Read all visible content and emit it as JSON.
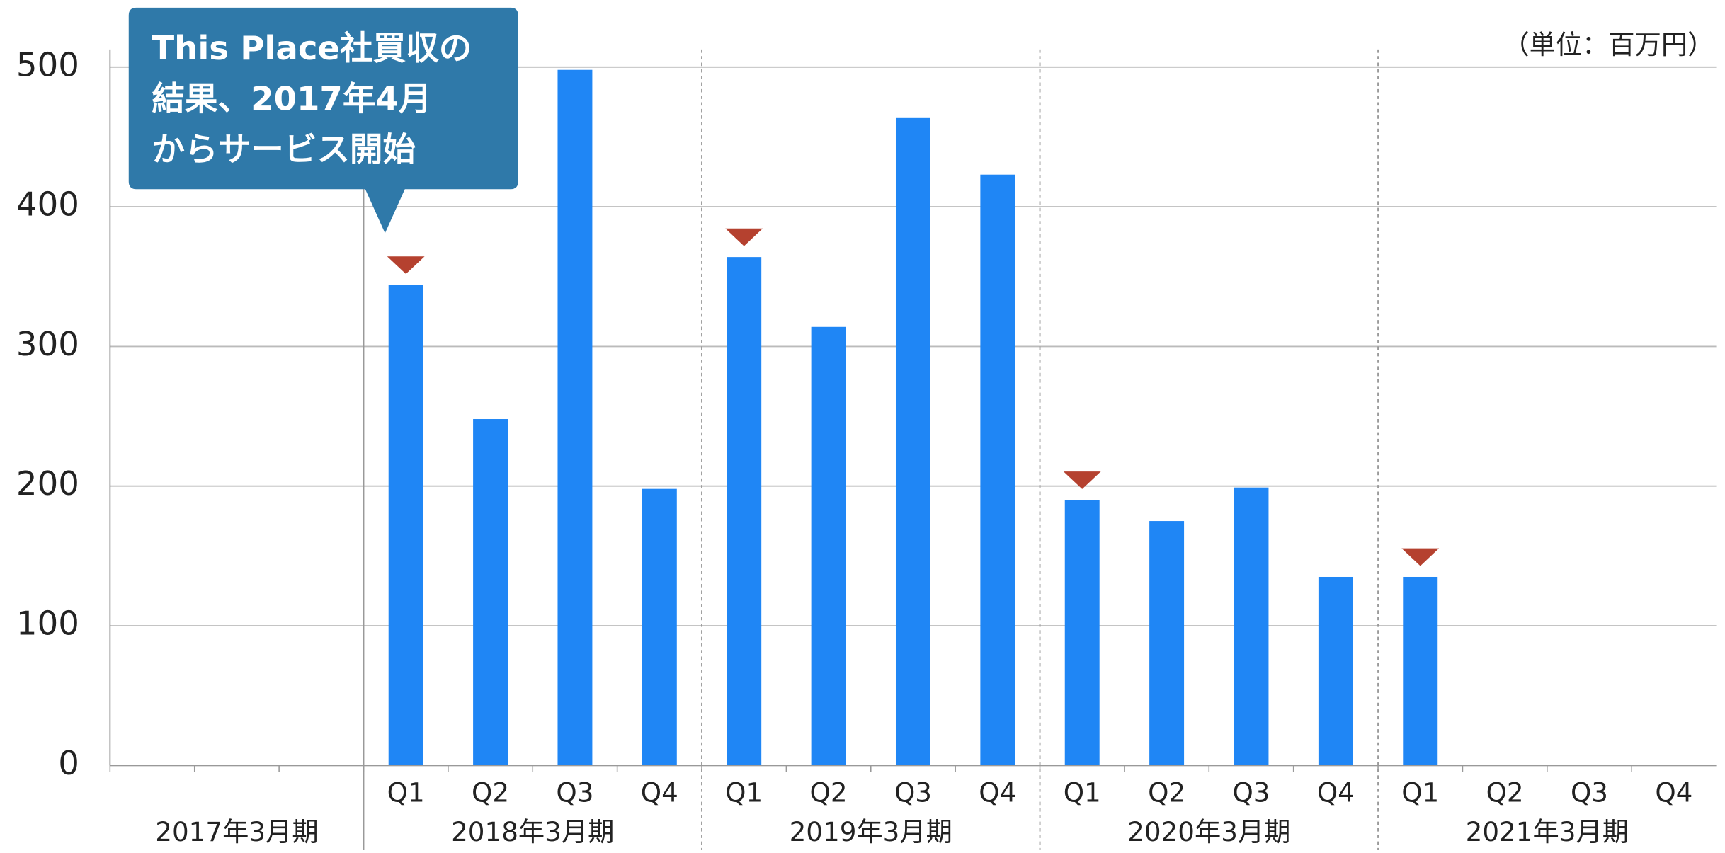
{
  "chart_data": {
    "type": "bar",
    "unit_label": "（単位：百万円）",
    "annotation": [
      "This Place社買収の",
      "結果、2017年4月",
      "からサービス開始"
    ],
    "annotation_color": "#2f79a9",
    "color": "#1f86f5",
    "marker_color": "#b5412f",
    "ylim": [
      0,
      500
    ],
    "yticks": [
      0,
      100,
      200,
      300,
      400,
      500
    ],
    "grid": true,
    "groups": [
      {
        "name": "2017年3月期",
        "categories": [
          null,
          null,
          null
        ],
        "values": [
          null,
          null,
          null
        ]
      },
      {
        "name": "2018年3月期",
        "categories": [
          "Q1",
          "Q2",
          "Q3",
          "Q4"
        ],
        "values": [
          344,
          248,
          498,
          198
        ]
      },
      {
        "name": "2019年3月期",
        "categories": [
          "Q1",
          "Q2",
          "Q3",
          "Q4"
        ],
        "values": [
          364,
          314,
          464,
          423
        ]
      },
      {
        "name": "2020年3月期",
        "categories": [
          "Q1",
          "Q2",
          "Q3",
          "Q4"
        ],
        "values": [
          190,
          175,
          199,
          135
        ]
      },
      {
        "name": "2021年3月期",
        "categories": [
          "Q1",
          "Q2",
          "Q3",
          "Q4"
        ],
        "values": [
          135,
          null,
          null,
          null
        ]
      }
    ]
  }
}
